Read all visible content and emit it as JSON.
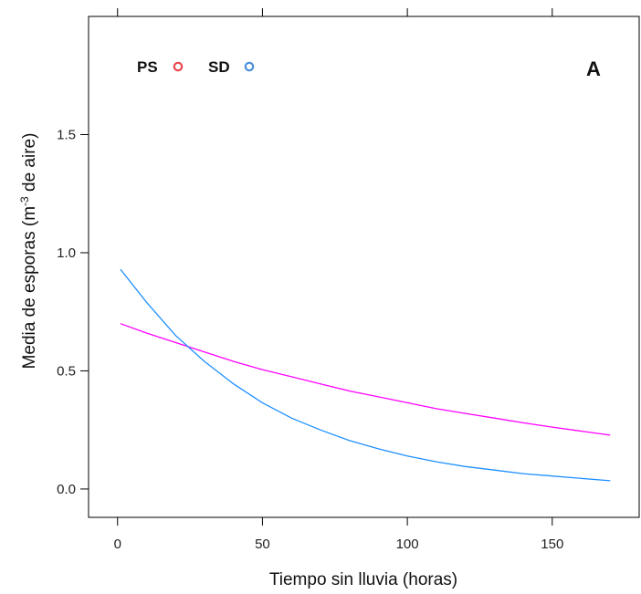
{
  "chart_data": {
    "type": "line",
    "panel_label": "A",
    "xlabel": "Tiempo sin lluvia  (horas)",
    "ylabel": {
      "before": "Media de esporas  (m",
      "superscript": "-3",
      "after": " de aire)"
    },
    "xlim": [
      -10,
      180
    ],
    "ylim": [
      -0.12,
      2.0
    ],
    "xticks": [
      0,
      50,
      100,
      150
    ],
    "xtick_labels": [
      "0",
      "50",
      "100",
      "150"
    ],
    "yticks": [
      0.0,
      0.5,
      1.0,
      1.5
    ],
    "ytick_labels": [
      "0.0",
      "0.5",
      "1.0",
      "1.5"
    ],
    "grid": false,
    "legend_placement": "top-left",
    "series": [
      {
        "name": "PS",
        "color": "#ff00ff",
        "legend_marker_color": "#e8474f",
        "x": [
          1,
          10,
          20,
          30,
          40,
          50,
          60,
          70,
          80,
          90,
          100,
          110,
          120,
          130,
          140,
          150,
          160,
          170
        ],
        "y": [
          0.7,
          0.66,
          0.62,
          0.58,
          0.54,
          0.505,
          0.475,
          0.445,
          0.415,
          0.39,
          0.365,
          0.34,
          0.32,
          0.3,
          0.28,
          0.262,
          0.245,
          0.228
        ]
      },
      {
        "name": "SD",
        "color": "#1e90ff",
        "legend_marker_color": "#4a90d9",
        "x": [
          1,
          10,
          20,
          30,
          40,
          50,
          60,
          70,
          80,
          90,
          100,
          110,
          120,
          130,
          140,
          150,
          160,
          170
        ],
        "y": [
          0.93,
          0.79,
          0.65,
          0.54,
          0.445,
          0.365,
          0.3,
          0.25,
          0.205,
          0.17,
          0.14,
          0.115,
          0.095,
          0.08,
          0.065,
          0.055,
          0.045,
          0.035
        ]
      }
    ]
  }
}
